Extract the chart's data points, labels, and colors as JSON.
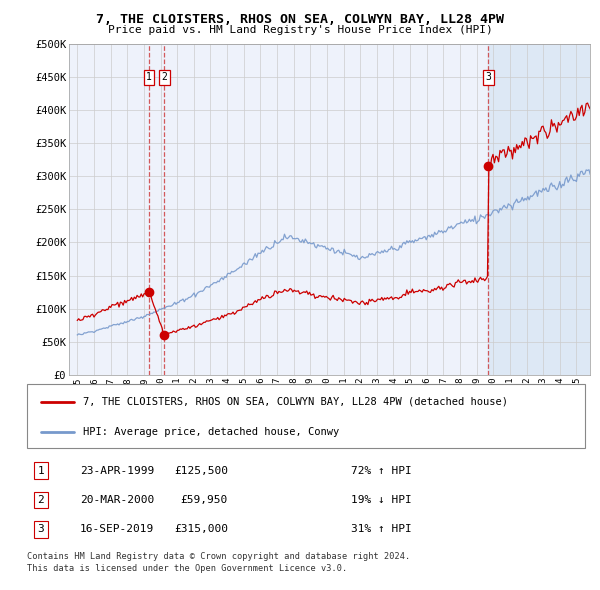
{
  "title": "7, THE CLOISTERS, RHOS ON SEA, COLWYN BAY, LL28 4PW",
  "subtitle": "Price paid vs. HM Land Registry's House Price Index (HPI)",
  "legend_line1": "7, THE CLOISTERS, RHOS ON SEA, COLWYN BAY, LL28 4PW (detached house)",
  "legend_line2": "HPI: Average price, detached house, Conwy",
  "footer_line1": "Contains HM Land Registry data © Crown copyright and database right 2024.",
  "footer_line2": "This data is licensed under the Open Government Licence v3.0.",
  "transactions": [
    {
      "num": 1,
      "date": "23-APR-1999",
      "price": 125500,
      "pct": "72%",
      "dir": "↑",
      "x_year": 1999.31
    },
    {
      "num": 2,
      "date": "20-MAR-2000",
      "price": 59950,
      "pct": "19%",
      "dir": "↓",
      "x_year": 2000.22
    },
    {
      "num": 3,
      "date": "16-SEP-2019",
      "price": 315000,
      "pct": "31%",
      "dir": "↑",
      "x_year": 2019.71
    }
  ],
  "hpi_color": "#7799cc",
  "price_color": "#cc0000",
  "dashed_color": "#cc3333",
  "highlight_color": "#dde8f5",
  "grid_color": "#cccccc",
  "ylim": [
    0,
    500000
  ],
  "ytick_vals": [
    0,
    50000,
    100000,
    150000,
    200000,
    250000,
    300000,
    350000,
    400000,
    450000,
    500000
  ],
  "ytick_labels": [
    "£0",
    "£50K",
    "£100K",
    "£150K",
    "£200K",
    "£250K",
    "£300K",
    "£350K",
    "£400K",
    "£450K",
    "£500K"
  ],
  "xlim": [
    1994.5,
    2025.8
  ],
  "xticks": [
    1995,
    1996,
    1997,
    1998,
    1999,
    2000,
    2001,
    2002,
    2003,
    2004,
    2005,
    2006,
    2007,
    2008,
    2009,
    2010,
    2011,
    2012,
    2013,
    2014,
    2015,
    2016,
    2017,
    2018,
    2019,
    2020,
    2021,
    2022,
    2023,
    2024,
    2025
  ],
  "bg_color": "#ffffff",
  "plot_bg": "#eef2fb"
}
